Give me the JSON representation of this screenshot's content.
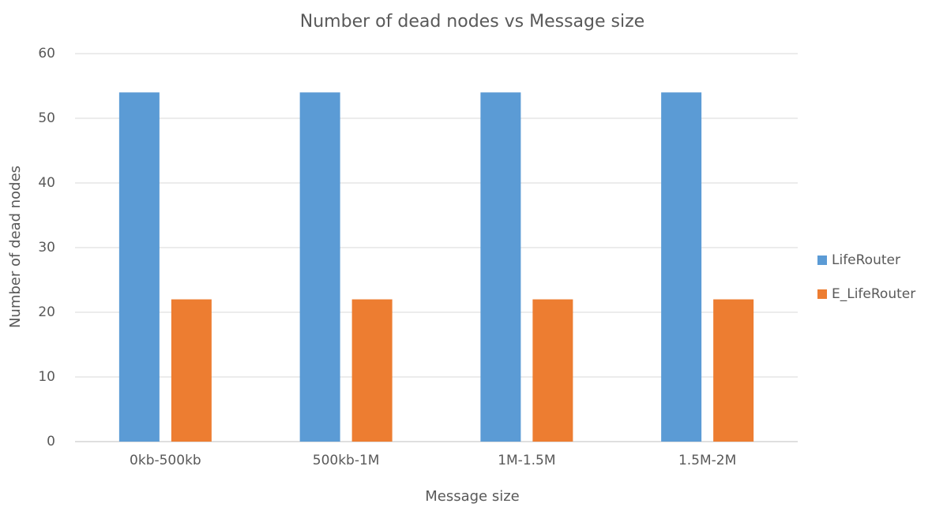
{
  "chart_data": {
    "type": "bar",
    "title": "Number of dead nodes vs Message size",
    "xlabel": "Message size",
    "ylabel": "Number of dead nodes",
    "categories": [
      "0kb-500kb",
      "500kb-1M",
      "1M-1.5M",
      "1.5M-2M"
    ],
    "series": [
      {
        "name": "LifeRouter",
        "color": "#5b9bd5",
        "values": [
          54,
          54,
          54,
          54
        ]
      },
      {
        "name": "E_LifeRouter",
        "color": "#ed7d31",
        "values": [
          22,
          22,
          22,
          22
        ]
      }
    ],
    "ylim": [
      0,
      60
    ],
    "yticks": [
      0,
      10,
      20,
      30,
      40,
      50,
      60
    ],
    "grid": true,
    "legend": "right"
  }
}
